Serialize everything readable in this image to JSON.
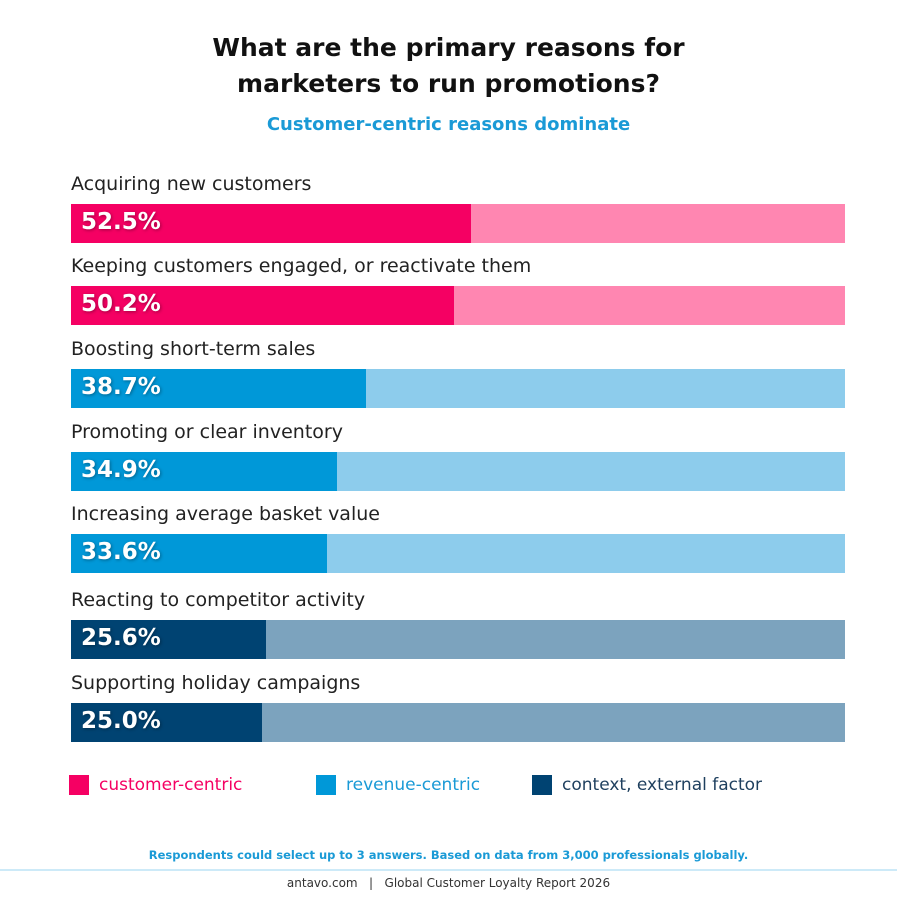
{
  "chart_data": {
    "type": "bar",
    "orientation": "horizontal",
    "title": "What are the primary reasons for marketers to run promotions?",
    "title_lines": [
      "What are the primary reasons for",
      "marketers to run promotions?"
    ],
    "subtitle": "Customer-centric reasons dominate",
    "xlim": [
      0,
      100
    ],
    "categories": [
      "Acquiring new customers",
      "Keeping customers engaged, or reactivate them",
      "Boosting short-term sales",
      "Promoting or clear inventory",
      "Increasing average basket value",
      "Reacting to competitor activity",
      "Supporting holiday campaigns"
    ],
    "values": [
      52.5,
      50.2,
      38.7,
      34.9,
      33.6,
      25.6,
      25.0
    ],
    "value_labels": [
      "52.5%",
      "50.2%",
      "38.7%",
      "34.9%",
      "33.6%",
      "25.6%",
      "25.0%"
    ],
    "groups": [
      "customer-centric",
      "customer-centric",
      "revenue-centric",
      "revenue-centric",
      "revenue-centric",
      "context, external factor",
      "context, external factor"
    ],
    "legend": [
      {
        "name": "customer-centric",
        "color": "#F50063",
        "track": "#FF86B1",
        "text_color": "#F50063"
      },
      {
        "name": "revenue-centric",
        "color": "#0098D8",
        "track": "#8DCCEC",
        "text_color": "#1a9ad6"
      },
      {
        "name": "context, external factor",
        "color": "#004372",
        "track": "#7CA3BE",
        "text_color": "#1e3f5e"
      }
    ],
    "legend_placement": "bottom",
    "grid": false
  },
  "note": "Respondents could select up to 3 answers. Based on data from 3,000 professionals globally.",
  "footer": "antavo.com   |   Global Customer Loyalty Report 2026"
}
